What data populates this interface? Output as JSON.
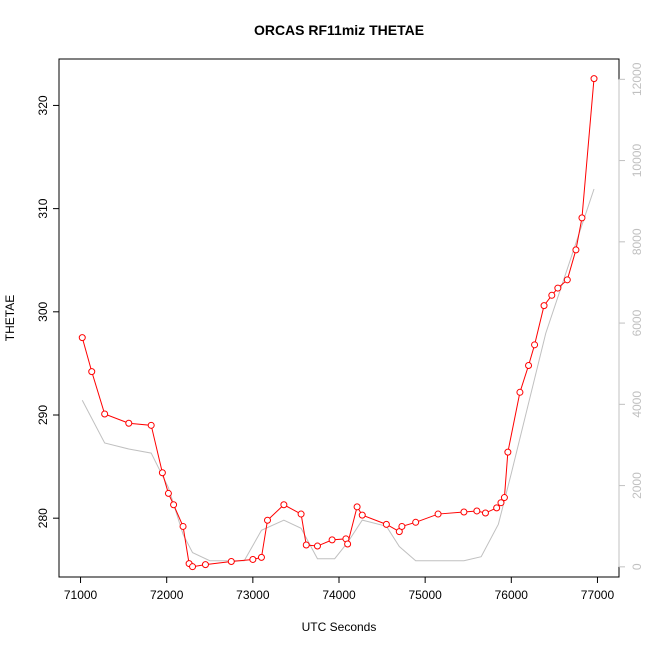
{
  "chart_data": {
    "type": "line",
    "title": "ORCAS RF11miz THETAE",
    "xlabel": "UTC Seconds",
    "ylabel": "THETAE",
    "xlim": [
      70750,
      77250
    ],
    "ylim": [
      274.3,
      324.5
    ],
    "y2lim": [
      -250,
      12500
    ],
    "x_ticks": [
      71000,
      72000,
      73000,
      74000,
      75000,
      76000,
      77000
    ],
    "y_ticks": [
      280,
      290,
      300,
      310,
      320
    ],
    "y2_ticks": [
      0,
      2000,
      4000,
      6000,
      8000,
      10000,
      12000
    ],
    "grid": false,
    "series": [
      {
        "role": "primary",
        "color": "#ff0000",
        "marker": "open-circle",
        "x": [
          71020,
          71130,
          71280,
          71560,
          71820,
          71950,
          72020,
          72080,
          72190,
          72260,
          72300,
          72450,
          72750,
          73000,
          73100,
          73170,
          73360,
          73560,
          73620,
          73750,
          73920,
          74080,
          74100,
          74210,
          74270,
          74550,
          74700,
          74730,
          74890,
          75150,
          75450,
          75600,
          75700,
          75830,
          75880,
          75920,
          75960,
          76100,
          76200,
          76270,
          76380,
          76470,
          76540,
          76650,
          76750,
          76820,
          76960
        ],
        "y": [
          297.5,
          294.2,
          290.1,
          289.2,
          289.0,
          284.4,
          282.4,
          281.3,
          279.2,
          275.6,
          275.3,
          275.5,
          275.8,
          276.0,
          276.2,
          279.8,
          281.3,
          280.4,
          277.4,
          277.3,
          277.9,
          278.0,
          277.5,
          281.1,
          280.3,
          279.4,
          278.7,
          279.2,
          279.6,
          280.4,
          280.6,
          280.7,
          280.5,
          281.0,
          281.5,
          282.0,
          286.4,
          292.2,
          294.8,
          296.8,
          300.6,
          301.6,
          302.3,
          303.1,
          306.0,
          309.1,
          322.6
        ]
      },
      {
        "role": "secondary-axis",
        "color": "#c0c0c0",
        "x": [
          71020,
          71280,
          71560,
          71820,
          72020,
          72190,
          72300,
          72500,
          72900,
          73100,
          73360,
          73560,
          73750,
          73950,
          74100,
          74270,
          74550,
          74700,
          74890,
          75150,
          75450,
          75650,
          75850,
          76000,
          76400,
          76960
        ],
        "y": [
          4100,
          3050,
          2900,
          2800,
          1950,
          800,
          350,
          150,
          150,
          900,
          1150,
          950,
          200,
          200,
          600,
          1150,
          1000,
          500,
          150,
          150,
          150,
          250,
          1050,
          2300,
          5750,
          9300
        ]
      }
    ]
  }
}
